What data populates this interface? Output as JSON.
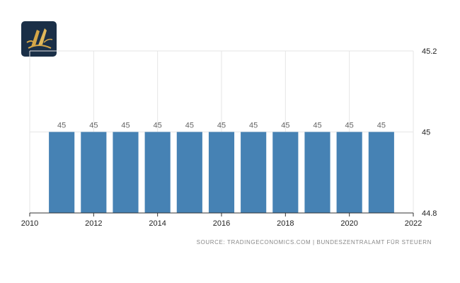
{
  "logo": {
    "name": "brand-logo"
  },
  "source": "SOURCE: TRADINGECONOMICS.COM  |  BUNDESZENTRALAMT FÜR STEUERN",
  "chart_data": {
    "type": "bar",
    "title": "",
    "xlabel": "",
    "ylabel": "",
    "categories": [
      2011,
      2012,
      2013,
      2014,
      2015,
      2016,
      2017,
      2018,
      2019,
      2020,
      2021
    ],
    "values": [
      45,
      45,
      45,
      45,
      45,
      45,
      45,
      45,
      45,
      45,
      45
    ],
    "data_labels": [
      "45",
      "45",
      "45",
      "45",
      "45",
      "45",
      "45",
      "45",
      "45",
      "45",
      "45"
    ],
    "xlim": [
      2010,
      2022
    ],
    "ylim": [
      44.8,
      45.2
    ],
    "x_ticks": [
      "2010",
      "2012",
      "2014",
      "2016",
      "2018",
      "2020",
      "2022"
    ],
    "y_ticks": [
      "44.8",
      "45",
      "45.2"
    ],
    "y_axis_side": "right",
    "grid": true,
    "bar_color": "#4682b4",
    "grid_color": "#e6e6e6",
    "axis_color": "#333333"
  }
}
